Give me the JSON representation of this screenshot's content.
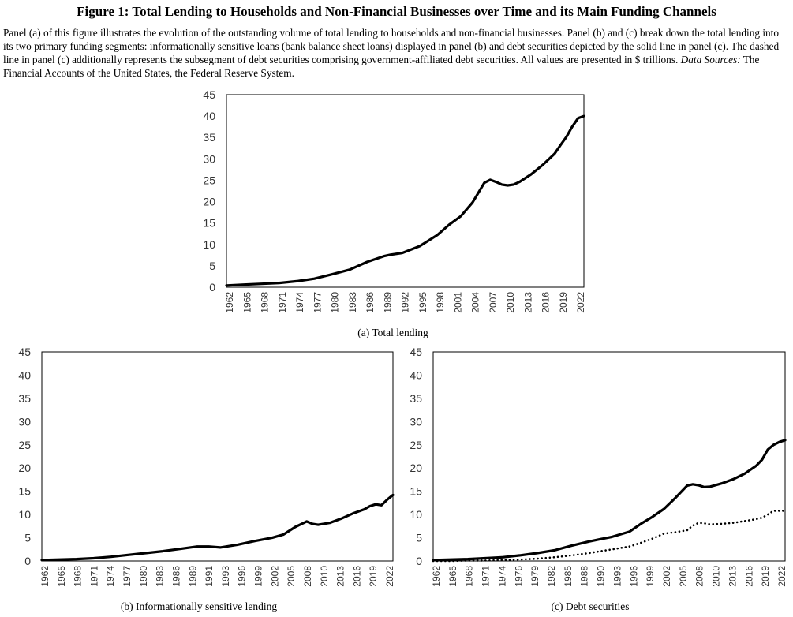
{
  "figure": {
    "title": "Figure 1: Total Lending to Households and Non-Financial Businesses over Time and its Main Funding Channels",
    "caption_main": "Panel (a) of this figure illustrates the evolution of the outstanding volume of total lending to households and non-financial businesses. Panel (b) and (c) break down the total lending into its two primary funding segments: informationally sensitive loans (bank balance sheet loans) displayed in panel (b) and debt securities depicted by the solid line in panel (c). The dashed line in panel (c) additionally represents the subsegment of debt securities comprising government-affiliated debt securities. All values are presented in $ trillions.",
    "caption_sources_label": "Data Sources:",
    "caption_sources": "The Financial Accounts of the United States, the Federal Reserve System."
  },
  "chart_data": [
    {
      "type": "line",
      "label": "(a) Total lending",
      "x": [
        1962,
        1965,
        1968,
        1971,
        1974,
        1977,
        1980,
        1983,
        1986,
        1989,
        1990,
        1992,
        1995,
        1998,
        2000,
        2002,
        2004,
        2006,
        2007,
        2008,
        2009,
        2010,
        2011,
        2012,
        2014,
        2016,
        2018,
        2019,
        2020,
        2021,
        2022,
        2023
      ],
      "series": [
        {
          "style": "solid",
          "values": [
            0.4,
            0.6,
            0.8,
            1.0,
            1.4,
            2.0,
            3.0,
            4.1,
            5.9,
            7.3,
            7.6,
            8.0,
            9.6,
            12.2,
            14.6,
            16.6,
            19.8,
            24.4,
            25.1,
            24.6,
            24.0,
            23.8,
            24.0,
            24.6,
            26.4,
            28.6,
            31.2,
            33.2,
            35.1,
            37.5,
            39.5,
            40.0
          ]
        }
      ],
      "xticks": [
        "1962",
        "1965",
        "1968",
        "1971",
        "1974",
        "1977",
        "1980",
        "1983",
        "1986",
        "1989",
        "1992",
        "1995",
        "1998",
        "2001",
        "2004",
        "2007",
        "2010",
        "2013",
        "2016",
        "2019",
        "2022"
      ],
      "yticks": [
        "0",
        "5",
        "10",
        "15",
        "20",
        "25",
        "30",
        "35",
        "40",
        "45"
      ],
      "ylim": [
        0,
        45
      ]
    },
    {
      "type": "line",
      "label": "(b) Informationally sensitive lending",
      "x": [
        1962,
        1965,
        1968,
        1971,
        1974,
        1977,
        1980,
        1983,
        1986,
        1989,
        1991,
        1993,
        1996,
        1999,
        2002,
        2004,
        2006,
        2008,
        2009,
        2010,
        2012,
        2014,
        2016,
        2018,
        2019,
        2020,
        2021,
        2022,
        2023
      ],
      "series": [
        {
          "style": "solid",
          "values": [
            0.2,
            0.3,
            0.4,
            0.6,
            0.9,
            1.3,
            1.7,
            2.1,
            2.6,
            3.1,
            3.1,
            2.9,
            3.5,
            4.3,
            5.0,
            5.7,
            7.3,
            8.5,
            8.0,
            7.8,
            8.2,
            9.1,
            10.2,
            11.1,
            11.8,
            12.2,
            12.0,
            13.2,
            14.2
          ]
        }
      ],
      "xticks": [
        "1962",
        "1965",
        "1968",
        "1971",
        "1974",
        "1977",
        "1980",
        "1983",
        "1986",
        "1989",
        "1991",
        "1993",
        "1996",
        "1999",
        "2002",
        "2005",
        "2008",
        "2010",
        "2013",
        "2016",
        "2019",
        "2022"
      ],
      "yticks": [
        "0",
        "5",
        "10",
        "15",
        "20",
        "25",
        "30",
        "35",
        "40",
        "45"
      ],
      "ylim": [
        0,
        45
      ]
    },
    {
      "type": "line",
      "label": "(c) Debt securities",
      "x": [
        1962,
        1965,
        1968,
        1971,
        1974,
        1977,
        1980,
        1983,
        1986,
        1989,
        1991,
        1993,
        1996,
        1998,
        2000,
        2002,
        2004,
        2006,
        2007,
        2008,
        2009,
        2010,
        2012,
        2014,
        2016,
        2018,
        2019,
        2020,
        2021,
        2022,
        2023
      ],
      "series": [
        {
          "style": "solid",
          "values": [
            0.2,
            0.3,
            0.4,
            0.6,
            0.8,
            1.2,
            1.7,
            2.3,
            3.3,
            4.2,
            4.7,
            5.2,
            6.3,
            8.0,
            9.5,
            11.2,
            13.6,
            16.2,
            16.5,
            16.3,
            15.9,
            16.0,
            16.7,
            17.6,
            18.8,
            20.5,
            21.8,
            24.0,
            25.0,
            25.6,
            26.0
          ]
        },
        {
          "style": "dotted",
          "values": [
            0.0,
            0.0,
            0.1,
            0.1,
            0.2,
            0.3,
            0.5,
            0.8,
            1.2,
            1.7,
            2.1,
            2.5,
            3.1,
            3.9,
            4.8,
            5.9,
            6.2,
            6.6,
            7.6,
            8.2,
            8.1,
            7.9,
            8.0,
            8.2,
            8.6,
            9.0,
            9.3,
            10.0,
            10.8,
            10.8,
            10.8
          ]
        }
      ],
      "xticks": [
        "1962",
        "1965",
        "1968",
        "1971",
        "1974",
        "1976",
        "1979",
        "1982",
        "1985",
        "1988",
        "1990",
        "1993",
        "1996",
        "1999",
        "2002",
        "2005",
        "2008",
        "2010",
        "2013",
        "2016",
        "2019",
        "2022"
      ],
      "yticks": [
        "0",
        "5",
        "10",
        "15",
        "20",
        "25",
        "30",
        "35",
        "40",
        "45"
      ],
      "ylim": [
        0,
        45
      ]
    }
  ]
}
